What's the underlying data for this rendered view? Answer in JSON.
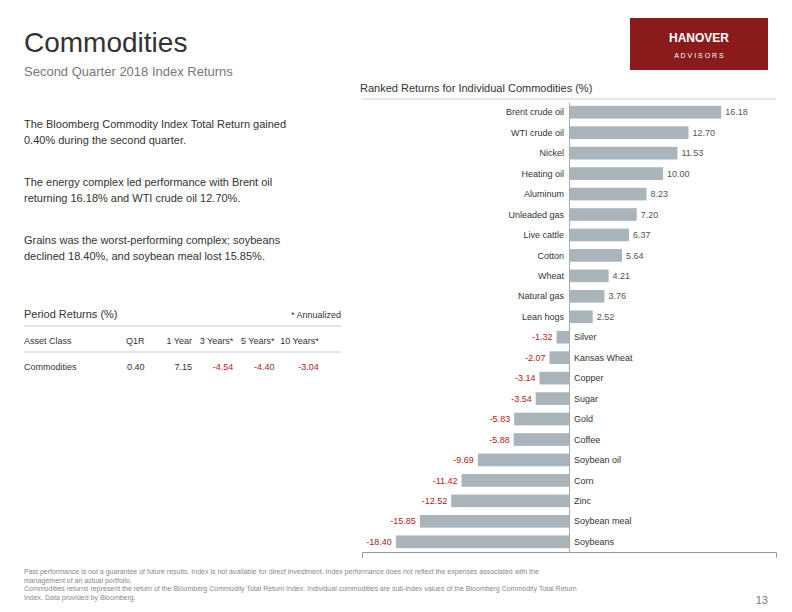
{
  "title": "Commodities",
  "subtitle": "Second Quarter 2018 Index Returns",
  "paragraphs": [
    "The Bloomberg Commodity Index Total Return gained\n0.40% during the second quarter.",
    "The energy complex led performance with Brent oil\nreturning 16.18% and WTI crude oil 12.70%.",
    "Grains was the worst-performing complex; soybeans\ndeclined 18.40%, and soybean meal lost 15.85%."
  ],
  "logo": {
    "lines": [
      "HANOVER",
      "A D V I S O R S"
    ],
    "color": "#8b1a1a"
  },
  "table": {
    "title": "Period Returns (%)",
    "note": "* Annualized",
    "headers": [
      "Asset Class",
      "Q1R",
      "1 Year",
      "3 Years*",
      "5 Years*",
      "10 Years*"
    ],
    "rows": [
      [
        "Commodities",
        "0.40",
        "7.15",
        "-4.54",
        "-4.40",
        "-3.04"
      ]
    ]
  },
  "footer": "Past performance is not a guarantee of future results. Index is not available for direct investment. Index performance does not reflect the expenses associated with the\nmanagement of an actual portfolio.\nCommodities returns represent the return of the Bloomberg Commodity Total Return Index. Individual commodities are sub-index values of the Bloomberg Commodity Total Return\nIndex. Data provided by Bloomberg.",
  "page_number": "13",
  "chart_data": {
    "type": "bar",
    "orientation": "horizontal",
    "title": "Ranked Returns for Individual Commodities (%)",
    "categories": [
      "Brent crude oil",
      "WTI crude oil",
      "Nickel",
      "Heating oil",
      "Aluminum",
      "Unleaded gas",
      "Live cattle",
      "Cotton",
      "Wheat",
      "Natural gas",
      "Lean hogs",
      "Silver",
      "Kansas Wheat",
      "Copper",
      "Sugar",
      "Gold",
      "Coffee",
      "Soybean oil",
      "Corn",
      "Zinc",
      "Soybean meal",
      "Soybeans"
    ],
    "values": [
      16.18,
      12.7,
      11.53,
      10.0,
      8.23,
      7.2,
      6.37,
      5.64,
      4.21,
      3.76,
      2.52,
      -1.32,
      -2.07,
      -3.14,
      -3.54,
      -5.83,
      -5.88,
      -9.69,
      -11.42,
      -12.52,
      -15.85,
      -18.4
    ],
    "value_labels": [
      "16.18",
      "12.70",
      "11.53",
      "10.00",
      "8.23",
      "7.20",
      "6.37",
      "5.64",
      "4.21",
      "3.76",
      "2.52",
      "-1.32",
      "-2.07",
      "-3.14",
      "-3.54",
      "-5.83",
      "-5.88",
      "-9.69",
      "-11.42",
      "-12.52",
      "-15.85",
      "-18.40"
    ],
    "color": "#aab4bb",
    "xlim": [
      -22,
      22
    ],
    "xticks": [],
    "data_labels": true,
    "grid": false,
    "tick_labels": "y"
  }
}
